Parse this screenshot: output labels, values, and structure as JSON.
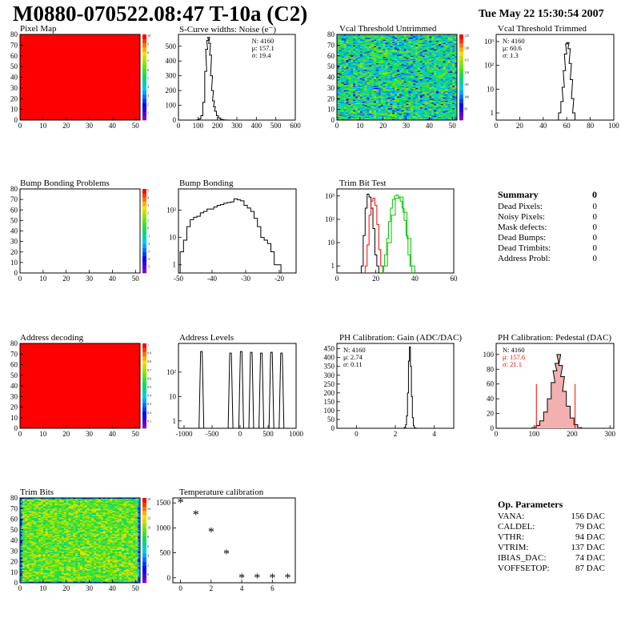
{
  "header": {
    "title": "M0880-070522.08:47 T-10a (C2)",
    "date": "Tue May 22 15:30:54 2007"
  },
  "colors": {
    "red": "#ff0000",
    "green": "#00c800",
    "black": "#000000",
    "frame": "#000000"
  },
  "chart_data": [
    {
      "id": "pixel-map",
      "type": "heatmap",
      "title": "Pixel Map",
      "xlim": [
        0,
        52
      ],
      "ylim": [
        0,
        80
      ],
      "xticks": [
        0,
        10,
        20,
        30,
        40,
        50
      ],
      "yticks": [
        0,
        10,
        20,
        30,
        40,
        50,
        60,
        70,
        80
      ],
      "fill": "uniform-red",
      "palette_scale": [
        "1",
        "2",
        "3",
        "4",
        "5",
        "6",
        "7",
        "8",
        "9",
        "10"
      ]
    },
    {
      "id": "scurve-noise",
      "type": "line",
      "title": "S-Curve widths: Noise (e⁻)",
      "xlim": [
        0,
        600
      ],
      "ylim": [
        0,
        580
      ],
      "xticks": [
        0,
        100,
        200,
        300,
        400,
        500,
        600
      ],
      "yticks": [
        0,
        100,
        200,
        300,
        400,
        500
      ],
      "stats": [
        "N: 4160",
        "μ: 157.1",
        "σ: 19.4"
      ],
      "x": [
        90,
        100,
        110,
        120,
        130,
        140,
        145,
        150,
        155,
        160,
        165,
        170,
        175,
        180,
        185,
        190,
        200,
        210,
        220,
        230,
        240,
        250,
        260,
        270
      ],
      "values": [
        0,
        2,
        8,
        30,
        120,
        330,
        480,
        540,
        560,
        520,
        440,
        300,
        200,
        130,
        90,
        60,
        30,
        14,
        6,
        2,
        1,
        1,
        0,
        0
      ]
    },
    {
      "id": "vcal-untrimmed",
      "type": "heatmap",
      "title": "Vcal Threshold Untrimmed",
      "xlim": [
        0,
        52
      ],
      "ylim": [
        0,
        80
      ],
      "xticks": [
        0,
        10,
        20,
        30,
        40,
        50
      ],
      "yticks": [
        0,
        10,
        20,
        30,
        40,
        50,
        60,
        70,
        80
      ],
      "fill": "random-noise",
      "palette_scale": [
        "95",
        "100",
        "105",
        "110",
        "115",
        "120",
        "125"
      ]
    },
    {
      "id": "vcal-trimmed",
      "type": "line",
      "title": "Vcal Threshold Trimmed",
      "log_y": true,
      "xlim": [
        0,
        100
      ],
      "ylim": [
        0.5,
        2000
      ],
      "xticks": [
        0,
        20,
        40,
        60,
        80,
        100
      ],
      "yticks": [
        "1",
        "10",
        "10²",
        "10³"
      ],
      "stats": [
        "N: 4160",
        "μ: 60.6",
        "σ: 1.3"
      ],
      "x": [
        54,
        56,
        57,
        58,
        59,
        60,
        61,
        62,
        63,
        64,
        65,
        66
      ],
      "values": [
        1,
        3,
        12,
        60,
        300,
        800,
        900,
        500,
        120,
        25,
        4,
        1
      ]
    },
    {
      "id": "bump-problems",
      "type": "heatmap",
      "title": "Bump Bonding Problems",
      "xlim": [
        0,
        52
      ],
      "ylim": [
        0,
        80
      ],
      "xticks": [
        0,
        10,
        20,
        30,
        40,
        50
      ],
      "yticks": [
        0,
        10,
        20,
        30,
        40,
        50,
        60,
        70,
        80
      ],
      "fill": "empty",
      "palette_scale": [
        "-5",
        "-4",
        "-3",
        "-2",
        "-1",
        "0",
        "1",
        "2",
        "3",
        "4",
        "5"
      ]
    },
    {
      "id": "bump-bonding",
      "type": "line",
      "title": "Bump Bonding",
      "log_y": true,
      "xlim": [
        -50,
        -15
      ],
      "ylim": [
        0.5,
        600
      ],
      "xticks": [
        -50,
        -40,
        -30,
        -20
      ],
      "yticks": [
        "1",
        "10",
        "10²"
      ],
      "x": [
        -49,
        -48,
        -47,
        -46,
        -45,
        -44,
        -43,
        -42,
        -41,
        -40,
        -39,
        -38,
        -37,
        -36,
        -35,
        -34,
        -33,
        -32,
        -31,
        -30,
        -29,
        -28,
        -27,
        -26,
        -25,
        -24,
        -23,
        -22,
        -21,
        -20
      ],
      "values": [
        3,
        8,
        25,
        45,
        55,
        60,
        80,
        90,
        110,
        110,
        130,
        150,
        160,
        180,
        190,
        200,
        260,
        240,
        220,
        150,
        120,
        90,
        50,
        25,
        10,
        8,
        6,
        3,
        1,
        1
      ]
    },
    {
      "id": "trim-bit-test",
      "type": "line",
      "title": "Trim Bit Test",
      "log_y": true,
      "xlim": [
        0,
        60
      ],
      "ylim": [
        0.5,
        2000
      ],
      "xticks": [
        0,
        20,
        40,
        60
      ],
      "yticks": [
        "1",
        "10",
        "10²",
        "10³"
      ],
      "series": [
        {
          "color": "#000000",
          "x": [
            13,
            14,
            15,
            16,
            17,
            18,
            19,
            20,
            21
          ],
          "values": [
            1,
            20,
            300,
            1200,
            900,
            300,
            40,
            3,
            1
          ]
        },
        {
          "color": "#ff0000",
          "x": [
            15,
            16,
            17,
            18,
            19,
            20,
            21,
            22,
            23
          ],
          "values": [
            1,
            8,
            150,
            600,
            800,
            400,
            60,
            5,
            1
          ]
        },
        {
          "color": "#00c800",
          "x": [
            24,
            25,
            26,
            27,
            28,
            29,
            30,
            31,
            32,
            33,
            34,
            35,
            36,
            37,
            38
          ],
          "values": [
            1,
            3,
            15,
            80,
            300,
            700,
            1000,
            1100,
            900,
            600,
            300,
            90,
            20,
            3,
            1
          ]
        },
        {
          "color": "#00c800",
          "x": [
            25,
            27,
            29,
            31,
            33,
            35,
            37,
            39
          ],
          "values": [
            1,
            10,
            150,
            800,
            900,
            200,
            15,
            1
          ]
        }
      ]
    },
    {
      "id": "address-decoding",
      "type": "heatmap",
      "title": "Address decoding",
      "xlim": [
        0,
        52
      ],
      "ylim": [
        0,
        80
      ],
      "xticks": [
        0,
        10,
        20,
        30,
        40,
        50
      ],
      "yticks": [
        0,
        10,
        20,
        30,
        40,
        50,
        60,
        70,
        80
      ],
      "fill": "uniform-red",
      "palette_scale": [
        "0.1",
        "0.2",
        "0.3",
        "0.4",
        "0.5",
        "0.6",
        "0.7",
        "0.8",
        "0.9",
        "1"
      ]
    },
    {
      "id": "address-levels",
      "type": "line",
      "title": "Address Levels",
      "log_y": true,
      "xlim": [
        -1100,
        1000
      ],
      "ylim": [
        0.5,
        1500
      ],
      "xticks": [
        -1000,
        -500,
        0,
        500,
        1000
      ],
      "yticks": [
        "1",
        "10",
        "10²"
      ],
      "peaks": [
        {
          "x": -690,
          "h": 700
        },
        {
          "x": -170,
          "h": 600
        },
        {
          "x": 20,
          "h": 700
        },
        {
          "x": 200,
          "h": 650
        },
        {
          "x": 380,
          "h": 600
        },
        {
          "x": 560,
          "h": 650
        },
        {
          "x": 740,
          "h": 600
        }
      ]
    },
    {
      "id": "ph-gain",
      "type": "line",
      "title": "PH Calibration: Gain (ADC/DAC)",
      "xlim": [
        -1,
        5
      ],
      "ylim": [
        0,
        480
      ],
      "xticks": [
        0,
        2,
        4
      ],
      "yticks": [
        0,
        50,
        100,
        150,
        200,
        250,
        300,
        350,
        400,
        450
      ],
      "stats": [
        "N: 4160",
        "μ: 2.74",
        "σ: 0.11"
      ],
      "x": [
        2.45,
        2.5,
        2.55,
        2.6,
        2.65,
        2.7,
        2.75,
        2.8,
        2.85,
        2.9,
        2.95,
        3.0,
        3.05
      ],
      "values": [
        1,
        5,
        20,
        70,
        200,
        380,
        460,
        350,
        180,
        60,
        15,
        3,
        1
      ]
    },
    {
      "id": "ph-pedestal",
      "type": "line",
      "title": "PH Calibration: Pedestal (DAC)",
      "xlim": [
        0,
        310
      ],
      "ylim": [
        0,
        115
      ],
      "xticks": [
        0,
        100,
        200,
        300
      ],
      "yticks": [
        0,
        20,
        40,
        60,
        80,
        100
      ],
      "stats": [
        "N: 4160",
        "μ: 157.6",
        "σ: 21.1"
      ],
      "stat_colors": [
        "#000000",
        "#ff0000",
        "#ff0000"
      ],
      "x": [
        100,
        110,
        120,
        130,
        140,
        150,
        155,
        160,
        165,
        170,
        175,
        180,
        190,
        200,
        210,
        220
      ],
      "values": [
        1,
        4,
        10,
        22,
        40,
        62,
        78,
        88,
        100,
        85,
        70,
        50,
        30,
        14,
        5,
        1
      ],
      "markers": [
        106,
        208
      ]
    },
    {
      "id": "trim-bits",
      "type": "heatmap",
      "title": "Trim Bits",
      "xlim": [
        0,
        52
      ],
      "ylim": [
        0,
        80
      ],
      "xticks": [
        0,
        10,
        20,
        30,
        40,
        50
      ],
      "yticks": [
        0,
        10,
        20,
        30,
        40,
        50,
        60,
        70,
        80
      ],
      "fill": "random-trim",
      "palette_scale": [
        "0",
        "2",
        "4",
        "6",
        "8",
        "10",
        "12",
        "14",
        "16"
      ]
    },
    {
      "id": "temp-calibration",
      "type": "scatter",
      "title": "Temperature calibration",
      "xlim": [
        -0.5,
        7.5
      ],
      "ylim": [
        -100,
        1600
      ],
      "xticks": [
        0,
        2,
        4,
        6
      ],
      "yticks": [
        0,
        500,
        1000,
        1500
      ],
      "x": [
        0,
        1,
        2,
        3,
        4,
        5,
        6,
        7
      ],
      "values": [
        1500,
        1260,
        920,
        480,
        0,
        0,
        0,
        0
      ]
    }
  ],
  "summary": {
    "title": "Summary",
    "count": "0",
    "rows": [
      {
        "k": "Dead Pixels:",
        "v": "0"
      },
      {
        "k": "Noisy Pixels:",
        "v": "0"
      },
      {
        "k": "Mask defects:",
        "v": "0"
      },
      {
        "k": "Dead Bumps:",
        "v": "0"
      },
      {
        "k": "Dead Trimbits:",
        "v": "0"
      },
      {
        "k": "Address Probl:",
        "v": "0"
      }
    ]
  },
  "params": {
    "title": "Op. Parameters",
    "rows": [
      {
        "k": "VANA:",
        "v": "156 DAC"
      },
      {
        "k": "CALDEL:",
        "v": "79 DAC"
      },
      {
        "k": "VTHR:",
        "v": "94 DAC"
      },
      {
        "k": "VTRIM:",
        "v": "137 DAC"
      },
      {
        "k": "IBIAS_DAC:",
        "v": "74 DAC"
      },
      {
        "k": "VOFFSETOP:",
        "v": "87 DAC"
      }
    ]
  }
}
